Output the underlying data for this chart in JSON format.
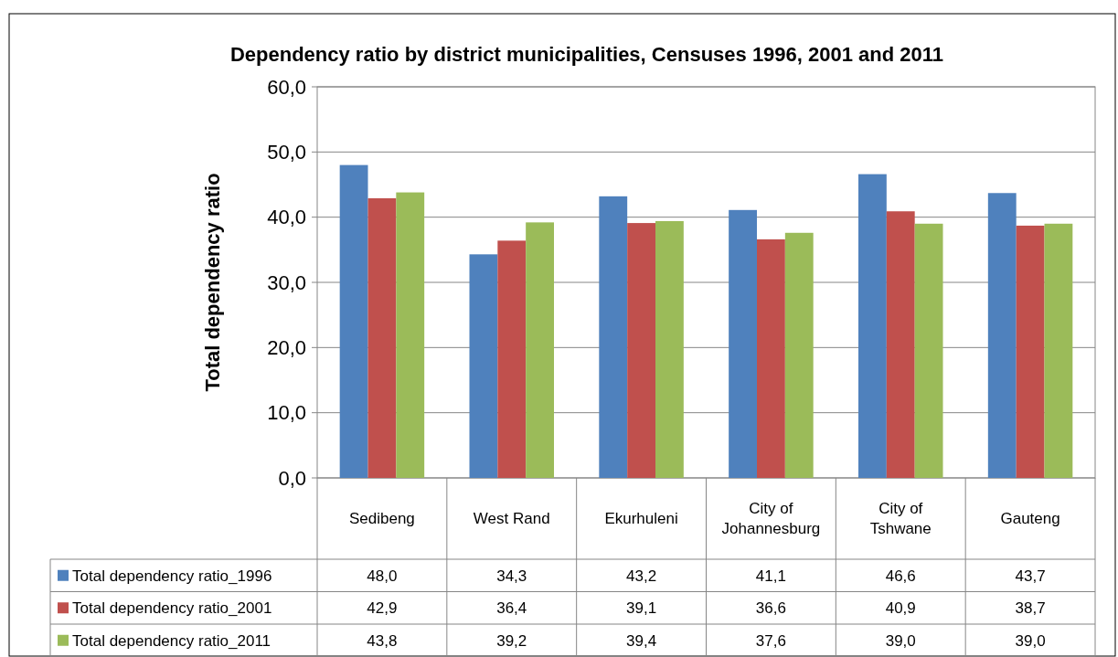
{
  "chart_data": {
    "type": "bar",
    "title": "Dependency ratio by district municipalities, Censuses 1996, 2001 and 2011",
    "ylabel": "Total dependency ratio",
    "categories": [
      "Sedibeng",
      "West Rand",
      "Ekurhuleni",
      "City of Johannesburg",
      "City of Tshwane",
      "Gauteng"
    ],
    "series": [
      {
        "name": "Total  dependency ratio_1996",
        "color": "#4f81bd",
        "values": [
          48.0,
          34.3,
          43.2,
          41.1,
          46.6,
          43.7
        ],
        "value_labels": [
          "48,0",
          "34,3",
          "43,2",
          "41,1",
          "46,6",
          "43,7"
        ]
      },
      {
        "name": "Total  dependency ratio_2001",
        "color": "#c0504d",
        "values": [
          42.9,
          36.4,
          39.1,
          36.6,
          40.9,
          38.7
        ],
        "value_labels": [
          "42,9",
          "36,4",
          "39,1",
          "36,6",
          "40,9",
          "38,7"
        ]
      },
      {
        "name": "Total  dependency ratio_2011",
        "color": "#9bbb59",
        "values": [
          43.8,
          39.2,
          39.4,
          37.6,
          39.0,
          39.0
        ],
        "value_labels": [
          "43,8",
          "39,2",
          "39,4",
          "37,6",
          "39,0",
          "39,0"
        ]
      }
    ],
    "ylim": [
      0,
      60
    ],
    "yticks": [
      {
        "value": 0,
        "label": "0,0"
      },
      {
        "value": 10,
        "label": "10,0"
      },
      {
        "value": 20,
        "label": "20,0"
      },
      {
        "value": 30,
        "label": "30,0"
      },
      {
        "value": 40,
        "label": "40,0"
      },
      {
        "value": 50,
        "label": "50,0"
      },
      {
        "value": 60,
        "label": "60,0"
      }
    ],
    "grid": "y",
    "legend": "bottom"
  }
}
